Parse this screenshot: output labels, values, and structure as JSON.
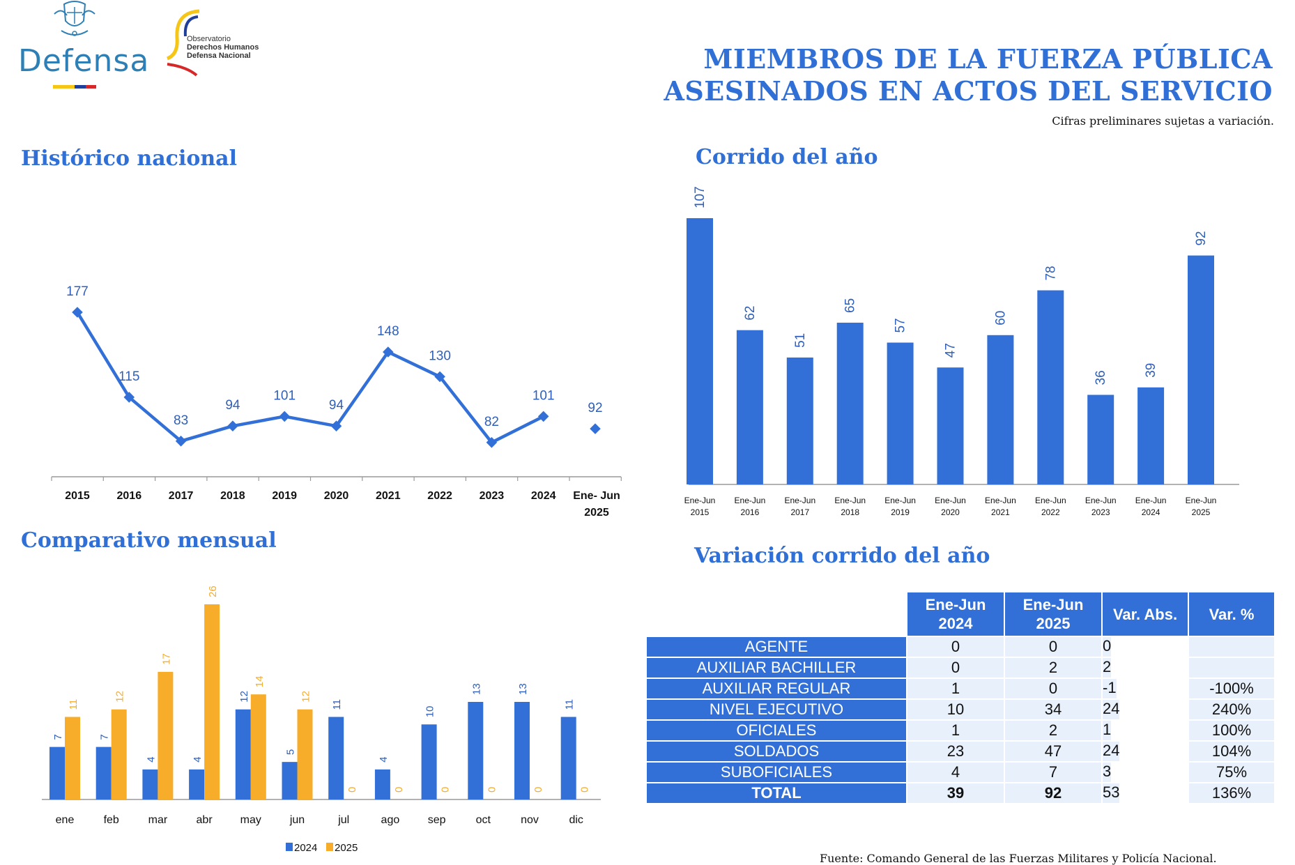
{
  "header": {
    "logo_text": "Defensa",
    "observatory": [
      "Observatorio",
      "Derechos Humanos",
      "Defensa Nacional"
    ],
    "title_line1": "MIEMBROS DE LA FUERZA PÚBLICA",
    "title_line2": "ASESINADOS EN ACTOS DEL SERVICIO",
    "note": "Cifras preliminares sujetas a variación."
  },
  "colors": {
    "blue": "#3270d8",
    "orange": "#f7ac2a",
    "title": "#2f6fd6"
  },
  "sections": {
    "historico": "Histórico nacional",
    "corrido": "Corrido del año",
    "mensual": "Comparativo mensual",
    "variacion": "Variación corrido del año"
  },
  "chart_data": [
    {
      "type": "line",
      "title": "Histórico nacional",
      "categories": [
        "2015",
        "2016",
        "2017",
        "2018",
        "2019",
        "2020",
        "2021",
        "2022",
        "2023",
        "2024",
        "Ene- Jun 2025"
      ],
      "values": [
        177,
        115,
        83,
        94,
        101,
        94,
        148,
        130,
        82,
        101,
        92
      ],
      "connected_points": 10,
      "ylim": [
        0,
        200
      ]
    },
    {
      "type": "bar",
      "title": "Corrido del año",
      "categories": [
        "Ene-Jun 2015",
        "Ene-Jun 2016",
        "Ene-Jun 2017",
        "Ene-Jun 2018",
        "Ene-Jun 2019",
        "Ene-Jun 2020",
        "Ene-Jun 2021",
        "Ene-Jun 2022",
        "Ene-Jun 2023",
        "Ene-Jun 2024",
        "Ene-Jun 2025"
      ],
      "values": [
        107,
        62,
        51,
        65,
        57,
        47,
        60,
        78,
        36,
        39,
        92
      ],
      "ylim": [
        0,
        120
      ]
    },
    {
      "type": "bar",
      "title": "Comparativo mensual",
      "categories": [
        "ene",
        "feb",
        "mar",
        "abr",
        "may",
        "jun",
        "jul",
        "ago",
        "sep",
        "oct",
        "nov",
        "dic"
      ],
      "series": [
        {
          "name": "2024",
          "values": [
            7,
            7,
            4,
            4,
            12,
            5,
            11,
            4,
            10,
            13,
            13,
            11
          ]
        },
        {
          "name": "2025",
          "values": [
            11,
            12,
            17,
            26,
            14,
            12,
            0,
            0,
            0,
            0,
            0,
            0
          ]
        }
      ],
      "legend": "bottom",
      "ylim": [
        0,
        28
      ]
    },
    {
      "type": "table",
      "title": "Variación corrido del año",
      "columns": [
        "Ene-Jun 2024",
        "Ene-Jun 2025",
        "Var. Abs.",
        "Var. %"
      ],
      "rows": [
        {
          "label": "AGENTE",
          "a": "0",
          "b": "0",
          "abs": "0",
          "pct": ""
        },
        {
          "label": "AUXILIAR BACHILLER",
          "a": "0",
          "b": "2",
          "abs": "2",
          "pct": ""
        },
        {
          "label": "AUXILIAR REGULAR",
          "a": "1",
          "b": "0",
          "abs": "-1",
          "pct": "-100%"
        },
        {
          "label": "NIVEL EJECUTIVO",
          "a": "10",
          "b": "34",
          "abs": "24",
          "pct": "240%"
        },
        {
          "label": "OFICIALES",
          "a": "1",
          "b": "2",
          "abs": "1",
          "pct": "100%"
        },
        {
          "label": "SOLDADOS",
          "a": "23",
          "b": "47",
          "abs": "24",
          "pct": "104%"
        },
        {
          "label": "SUBOFICIALES",
          "a": "4",
          "b": "7",
          "abs": "3",
          "pct": "75%"
        },
        {
          "label": "TOTAL",
          "a": "39",
          "b": "92",
          "abs": "53",
          "pct": "136%"
        }
      ]
    }
  ],
  "source_text": "Fuente: Comando General de las Fuerzas Militares y Policía Nacional."
}
